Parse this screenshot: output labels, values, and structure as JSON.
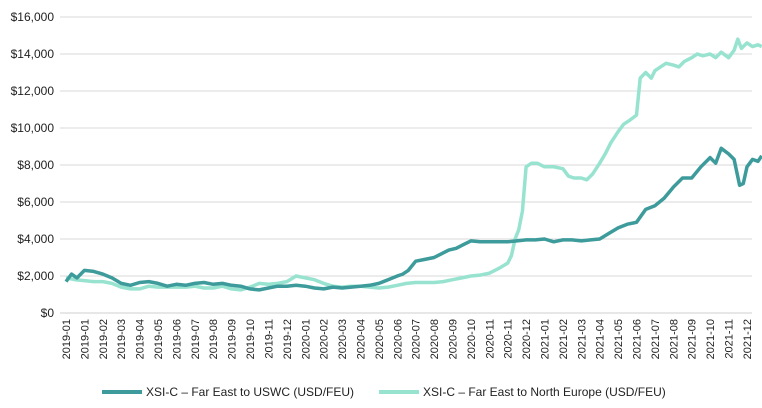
{
  "chart_data": {
    "type": "line",
    "title": "",
    "xlabel": "",
    "ylabel": "",
    "ylim": [
      0,
      16000
    ],
    "y_ticks": [
      0,
      2000,
      4000,
      6000,
      8000,
      10000,
      12000,
      14000,
      16000
    ],
    "y_tick_labels": [
      "$0",
      "$2,000",
      "$4,000",
      "$6,000",
      "$8,000",
      "$10,000",
      "$12,000",
      "$14,000",
      "$16,000"
    ],
    "x_tick_labels": [
      "2019-01",
      "2019-01",
      "2019-02",
      "2019-03",
      "2019-04",
      "2019-05",
      "2019-06",
      "2019-07",
      "2019-08",
      "2019-09",
      "2019-10",
      "2019-11",
      "2019-12",
      "2020-01",
      "2020-02",
      "2020-03",
      "2020-04",
      "2020-05",
      "2020-06",
      "2020-07",
      "2020-08",
      "2020-09",
      "2020-10",
      "2020-11",
      "2020-11",
      "2020-12",
      "2021-01",
      "2021-02",
      "2021-03",
      "2021-04",
      "2021-05",
      "2021-06",
      "2021-07",
      "2021-08",
      "2021-09",
      "2021-10",
      "2021-11",
      "2021-12"
    ],
    "grid": "horizontal",
    "legend_position": "bottom",
    "series": [
      {
        "name": "XSI-C – Far East to USWC (USD/FEU)",
        "color": "#3d9b9b",
        "points": [
          [
            0,
            1700
          ],
          [
            0.3,
            2100
          ],
          [
            0.6,
            1900
          ],
          [
            1.0,
            2300
          ],
          [
            1.5,
            2250
          ],
          [
            2.0,
            2100
          ],
          [
            2.5,
            1900
          ],
          [
            3.0,
            1600
          ],
          [
            3.5,
            1500
          ],
          [
            4.0,
            1650
          ],
          [
            4.5,
            1700
          ],
          [
            5.0,
            1600
          ],
          [
            5.5,
            1450
          ],
          [
            6.0,
            1550
          ],
          [
            6.5,
            1500
          ],
          [
            7.0,
            1600
          ],
          [
            7.5,
            1650
          ],
          [
            8.0,
            1550
          ],
          [
            8.5,
            1600
          ],
          [
            9.0,
            1500
          ],
          [
            9.5,
            1450
          ],
          [
            10.0,
            1300
          ],
          [
            10.5,
            1250
          ],
          [
            11.0,
            1350
          ],
          [
            11.5,
            1450
          ],
          [
            12.0,
            1450
          ],
          [
            12.5,
            1500
          ],
          [
            13.0,
            1450
          ],
          [
            13.5,
            1350
          ],
          [
            14.0,
            1300
          ],
          [
            14.5,
            1400
          ],
          [
            15.0,
            1350
          ],
          [
            15.5,
            1400
          ],
          [
            16.0,
            1450
          ],
          [
            16.5,
            1500
          ],
          [
            17.0,
            1600
          ],
          [
            17.5,
            1800
          ],
          [
            18.0,
            2000
          ],
          [
            18.3,
            2100
          ],
          [
            18.6,
            2300
          ],
          [
            19.0,
            2800
          ],
          [
            19.5,
            2900
          ],
          [
            20.0,
            3000
          ],
          [
            20.4,
            3200
          ],
          [
            20.8,
            3400
          ],
          [
            21.2,
            3500
          ],
          [
            21.6,
            3700
          ],
          [
            22.0,
            3900
          ],
          [
            22.5,
            3850
          ],
          [
            23.0,
            3850
          ],
          [
            23.5,
            3850
          ],
          [
            24.0,
            3850
          ],
          [
            24.5,
            3900
          ],
          [
            25.0,
            3950
          ],
          [
            25.5,
            3950
          ],
          [
            26.0,
            4000
          ],
          [
            26.5,
            3850
          ],
          [
            27.0,
            3950
          ],
          [
            27.5,
            3950
          ],
          [
            28.0,
            3900
          ],
          [
            28.5,
            3950
          ],
          [
            29.0,
            4000
          ],
          [
            29.5,
            4300
          ],
          [
            30.0,
            4600
          ],
          [
            30.5,
            4800
          ],
          [
            31.0,
            4900
          ],
          [
            31.5,
            5600
          ],
          [
            32.0,
            5800
          ],
          [
            32.5,
            6200
          ],
          [
            33.0,
            6800
          ],
          [
            33.5,
            7300
          ],
          [
            34.0,
            7300
          ],
          [
            34.5,
            7900
          ],
          [
            35.0,
            8400
          ],
          [
            35.3,
            8100
          ],
          [
            35.6,
            8900
          ],
          [
            36.0,
            8600
          ],
          [
            36.3,
            8300
          ],
          [
            36.6,
            6900
          ],
          [
            36.8,
            7000
          ],
          [
            37.0,
            7900
          ],
          [
            37.3,
            8300
          ],
          [
            37.6,
            8200
          ],
          [
            37.8,
            8500
          ]
        ]
      },
      {
        "name": "XSI-C – Far East to North Europe (USD/FEU)",
        "color": "#97e3d0",
        "points": [
          [
            0,
            1900
          ],
          [
            0.5,
            1800
          ],
          [
            1.0,
            1750
          ],
          [
            1.5,
            1700
          ],
          [
            2.0,
            1700
          ],
          [
            2.5,
            1600
          ],
          [
            3.0,
            1400
          ],
          [
            3.5,
            1300
          ],
          [
            4.0,
            1300
          ],
          [
            4.5,
            1450
          ],
          [
            5.0,
            1400
          ],
          [
            5.5,
            1400
          ],
          [
            6.0,
            1400
          ],
          [
            6.5,
            1400
          ],
          [
            7.0,
            1450
          ],
          [
            7.5,
            1350
          ],
          [
            8.0,
            1350
          ],
          [
            8.5,
            1450
          ],
          [
            9.0,
            1300
          ],
          [
            9.5,
            1250
          ],
          [
            10.0,
            1400
          ],
          [
            10.5,
            1600
          ],
          [
            11.0,
            1550
          ],
          [
            11.5,
            1600
          ],
          [
            12.0,
            1700
          ],
          [
            12.5,
            2000
          ],
          [
            13.0,
            1900
          ],
          [
            13.5,
            1800
          ],
          [
            14.0,
            1600
          ],
          [
            14.5,
            1450
          ],
          [
            15.0,
            1400
          ],
          [
            15.5,
            1450
          ],
          [
            16.0,
            1450
          ],
          [
            16.5,
            1400
          ],
          [
            17.0,
            1350
          ],
          [
            17.5,
            1400
          ],
          [
            18.0,
            1500
          ],
          [
            18.5,
            1600
          ],
          [
            19.0,
            1650
          ],
          [
            19.5,
            1650
          ],
          [
            20.0,
            1650
          ],
          [
            20.5,
            1700
          ],
          [
            21.0,
            1800
          ],
          [
            21.5,
            1900
          ],
          [
            22.0,
            2000
          ],
          [
            22.5,
            2050
          ],
          [
            23.0,
            2150
          ],
          [
            23.5,
            2400
          ],
          [
            24.0,
            2700
          ],
          [
            24.2,
            3100
          ],
          [
            24.4,
            4000
          ],
          [
            24.6,
            4500
          ],
          [
            24.8,
            5500
          ],
          [
            25.0,
            7900
          ],
          [
            25.3,
            8100
          ],
          [
            25.6,
            8100
          ],
          [
            26.0,
            7900
          ],
          [
            26.5,
            7900
          ],
          [
            27.0,
            7800
          ],
          [
            27.3,
            7400
          ],
          [
            27.6,
            7300
          ],
          [
            28.0,
            7300
          ],
          [
            28.3,
            7200
          ],
          [
            28.6,
            7500
          ],
          [
            29.0,
            8100
          ],
          [
            29.3,
            8600
          ],
          [
            29.6,
            9200
          ],
          [
            30.0,
            9800
          ],
          [
            30.3,
            10200
          ],
          [
            30.6,
            10400
          ],
          [
            31.0,
            10700
          ],
          [
            31.2,
            12700
          ],
          [
            31.5,
            13000
          ],
          [
            31.8,
            12700
          ],
          [
            32.0,
            13100
          ],
          [
            32.3,
            13300
          ],
          [
            32.6,
            13500
          ],
          [
            33.0,
            13400
          ],
          [
            33.3,
            13300
          ],
          [
            33.6,
            13600
          ],
          [
            34.0,
            13800
          ],
          [
            34.3,
            14000
          ],
          [
            34.6,
            13900
          ],
          [
            35.0,
            14000
          ],
          [
            35.3,
            13800
          ],
          [
            35.6,
            14100
          ],
          [
            36.0,
            13800
          ],
          [
            36.3,
            14200
          ],
          [
            36.5,
            14800
          ],
          [
            36.7,
            14300
          ],
          [
            37.0,
            14600
          ],
          [
            37.3,
            14400
          ],
          [
            37.6,
            14500
          ],
          [
            37.8,
            14400
          ]
        ]
      }
    ]
  }
}
